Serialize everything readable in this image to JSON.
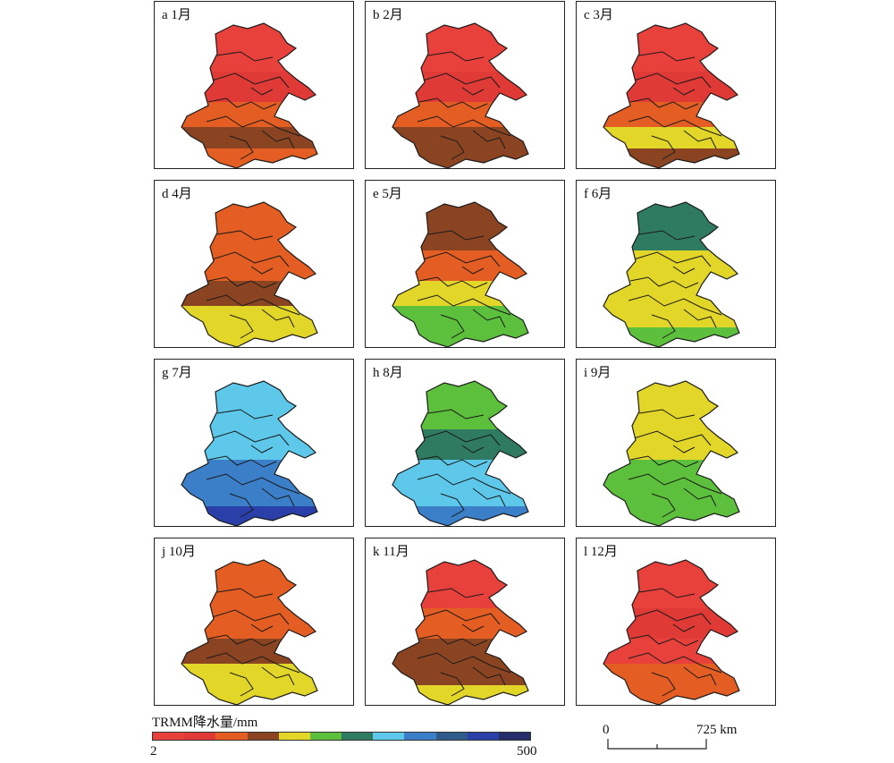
{
  "panels": [
    {
      "letter": "a",
      "month": "1月",
      "zones": [
        "#e8413c",
        "#e03a36",
        "#e45d22",
        "#8a4422",
        "#e45d22"
      ]
    },
    {
      "letter": "b",
      "month": "2月",
      "zones": [
        "#e8413c",
        "#e03a36",
        "#e45d22",
        "#8a4422",
        "#8a4422"
      ]
    },
    {
      "letter": "c",
      "month": "3月",
      "zones": [
        "#e8413c",
        "#e03a36",
        "#e45d22",
        "#e2d629",
        "#8a4422"
      ]
    },
    {
      "letter": "d",
      "month": "4月",
      "zones": [
        "#e45d22",
        "#e45d22",
        "#8a4422",
        "#e2d629",
        "#e2d629"
      ]
    },
    {
      "letter": "e",
      "month": "5月",
      "zones": [
        "#8a4422",
        "#e45d22",
        "#e2d629",
        "#5cc03c",
        "#5cc03c"
      ]
    },
    {
      "letter": "f",
      "month": "6月",
      "zones": [
        "#2e7b62",
        "#e2d629",
        "#e2d629",
        "#e2d629",
        "#5cc03c"
      ]
    },
    {
      "letter": "g",
      "month": "7月",
      "zones": [
        "#5ec8ea",
        "#5ec8ea",
        "#3b7fc8",
        "#3b7fc8",
        "#2a3fa8"
      ]
    },
    {
      "letter": "h",
      "month": "8月",
      "zones": [
        "#5cc03c",
        "#2e7b62",
        "#5ec8ea",
        "#5ec8ea",
        "#3b7fc8"
      ]
    },
    {
      "letter": "i",
      "month": "9月",
      "zones": [
        "#e2d629",
        "#e2d629",
        "#5cc03c",
        "#5cc03c",
        "#5cc03c"
      ]
    },
    {
      "letter": "j",
      "month": "10月",
      "zones": [
        "#e45d22",
        "#e45d22",
        "#8a4422",
        "#e2d629",
        "#e2d629"
      ]
    },
    {
      "letter": "k",
      "month": "11月",
      "zones": [
        "#e8413c",
        "#e45d22",
        "#8a4422",
        "#8a4422",
        "#e2d629"
      ]
    },
    {
      "letter": "l",
      "month": "12月",
      "zones": [
        "#e8413c",
        "#e03a36",
        "#e8413c",
        "#e45d22",
        "#e45d22"
      ]
    }
  ],
  "legend": {
    "title": "TRMM降水量/mm",
    "min": "2",
    "max": "500",
    "colors": [
      "#e8413c",
      "#e03a36",
      "#e45d22",
      "#8a4422",
      "#e2d629",
      "#5cc03c",
      "#2e7b62",
      "#5ec8ea",
      "#3b7fc8",
      "#2f5b8a",
      "#2a3fa8",
      "#262e6a"
    ]
  },
  "scale": {
    "zero": "0",
    "max": "725 km"
  }
}
